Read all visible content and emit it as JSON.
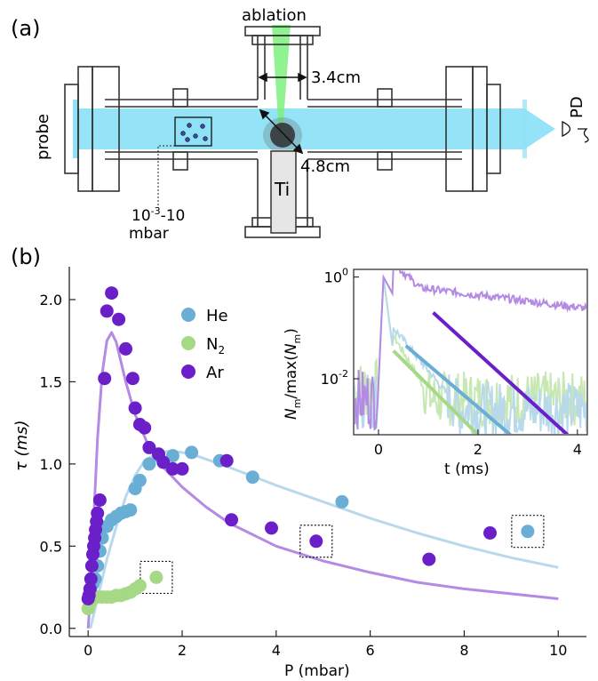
{
  "panel_a": {
    "label": "(a)",
    "ablation_label": "ablation",
    "dim_top": "3.4cm",
    "dim_bottom": "4.8cm",
    "target_label": "Ti",
    "probe_label": "probe",
    "detector_label": "PD",
    "pressure_label_1": "10",
    "pressure_label_exp": "-3",
    "pressure_label_2": "-10",
    "pressure_label_3": "mbar",
    "colors": {
      "beam": "#8fe1f5",
      "ablation": "#7cf07c",
      "chamber": "#333333",
      "target_fill": "#e8e8e8"
    }
  },
  "panel_b": {
    "label": "(b)",
    "colors": {
      "He": "#6aaed6",
      "N2": "#a6d985",
      "Ar": "#6a1fc9",
      "He_fit": "#b8d9ec",
      "N2_fit": "#c7e8b3",
      "Ar_fit": "#b48be3"
    }
  },
  "chart_data": [
    {
      "type": "scatter",
      "xlabel": "P (mbar)",
      "ylabel": "τ (ms)",
      "xlim": [
        -0.4,
        10.6
      ],
      "ylim": [
        -0.05,
        2.2
      ],
      "xticks": [
        "0",
        "2",
        "4",
        "6",
        "8",
        "10"
      ],
      "yticks": [
        "0.0",
        "0.5",
        "1.0",
        "1.5",
        "2.0"
      ],
      "legend": [
        "He",
        "N2",
        "Ar"
      ],
      "legend_display": {
        "He": "He",
        "N2_main": "N",
        "N2_sub": "2",
        "Ar": "Ar"
      },
      "legend_position": "upper-center",
      "series": [
        {
          "name": "He",
          "points": [
            [
              0.05,
              0.23
            ],
            [
              0.1,
              0.27
            ],
            [
              0.15,
              0.3
            ],
            [
              0.2,
              0.38
            ],
            [
              0.25,
              0.47
            ],
            [
              0.3,
              0.55
            ],
            [
              0.4,
              0.62
            ],
            [
              0.5,
              0.66
            ],
            [
              0.6,
              0.68
            ],
            [
              0.7,
              0.7
            ],
            [
              0.8,
              0.71
            ],
            [
              0.9,
              0.72
            ],
            [
              1.0,
              0.85
            ],
            [
              1.1,
              0.9
            ],
            [
              1.3,
              1.0
            ],
            [
              1.5,
              1.05
            ],
            [
              1.8,
              1.05
            ],
            [
              2.2,
              1.07
            ],
            [
              2.8,
              1.02
            ],
            [
              3.5,
              0.92
            ],
            [
              5.4,
              0.77
            ],
            [
              9.35,
              0.59
            ]
          ],
          "fit": [
            [
              0.05,
              0.0
            ],
            [
              0.2,
              0.18
            ],
            [
              0.4,
              0.42
            ],
            [
              0.6,
              0.62
            ],
            [
              0.8,
              0.8
            ],
            [
              1.0,
              0.93
            ],
            [
              1.2,
              1.02
            ],
            [
              1.5,
              1.07
            ],
            [
              1.8,
              1.08
            ],
            [
              2.2,
              1.06
            ],
            [
              3.0,
              0.98
            ],
            [
              4.0,
              0.87
            ],
            [
              5.0,
              0.77
            ],
            [
              6.0,
              0.67
            ],
            [
              7.0,
              0.58
            ],
            [
              8.0,
              0.5
            ],
            [
              9.0,
              0.43
            ],
            [
              10.0,
              0.37
            ]
          ]
        },
        {
          "name": "N2",
          "points": [
            [
              0.0,
              0.12
            ],
            [
              0.05,
              0.16
            ],
            [
              0.1,
              0.18
            ],
            [
              0.2,
              0.19
            ],
            [
              0.3,
              0.19
            ],
            [
              0.4,
              0.19
            ],
            [
              0.5,
              0.19
            ],
            [
              0.6,
              0.2
            ],
            [
              0.7,
              0.2
            ],
            [
              0.8,
              0.21
            ],
            [
              0.9,
              0.22
            ],
            [
              1.0,
              0.24
            ],
            [
              1.1,
              0.26
            ],
            [
              1.45,
              0.31
            ]
          ],
          "fit": [
            [
              0.0,
              0.1
            ],
            [
              0.1,
              0.18
            ],
            [
              0.3,
              0.2
            ],
            [
              0.6,
              0.2
            ],
            [
              1.0,
              0.24
            ],
            [
              1.2,
              0.27
            ]
          ]
        },
        {
          "name": "Ar",
          "points": [
            [
              0.0,
              0.18
            ],
            [
              0.02,
              0.2
            ],
            [
              0.04,
              0.24
            ],
            [
              0.06,
              0.3
            ],
            [
              0.08,
              0.38
            ],
            [
              0.1,
              0.45
            ],
            [
              0.12,
              0.5
            ],
            [
              0.14,
              0.55
            ],
            [
              0.16,
              0.6
            ],
            [
              0.18,
              0.65
            ],
            [
              0.2,
              0.7
            ],
            [
              0.25,
              0.78
            ],
            [
              0.35,
              1.52
            ],
            [
              0.4,
              1.93
            ],
            [
              0.5,
              2.04
            ],
            [
              0.65,
              1.88
            ],
            [
              0.8,
              1.7
            ],
            [
              0.95,
              1.52
            ],
            [
              1.0,
              1.34
            ],
            [
              1.1,
              1.24
            ],
            [
              1.2,
              1.22
            ],
            [
              1.3,
              1.1
            ],
            [
              1.5,
              1.06
            ],
            [
              1.6,
              1.01
            ],
            [
              1.8,
              0.97
            ],
            [
              2.0,
              0.97
            ],
            [
              2.95,
              1.02
            ],
            [
              3.05,
              0.66
            ],
            [
              3.9,
              0.61
            ],
            [
              4.85,
              0.53
            ],
            [
              7.25,
              0.42
            ],
            [
              8.55,
              0.58
            ]
          ],
          "fit": [
            [
              0.0,
              0.0
            ],
            [
              0.05,
              0.2
            ],
            [
              0.1,
              0.55
            ],
            [
              0.2,
              1.15
            ],
            [
              0.3,
              1.55
            ],
            [
              0.4,
              1.75
            ],
            [
              0.5,
              1.8
            ],
            [
              0.6,
              1.74
            ],
            [
              0.8,
              1.5
            ],
            [
              1.0,
              1.3
            ],
            [
              1.3,
              1.1
            ],
            [
              1.6,
              0.98
            ],
            [
              2.0,
              0.86
            ],
            [
              2.5,
              0.74
            ],
            [
              3.0,
              0.64
            ],
            [
              4.0,
              0.5
            ],
            [
              5.0,
              0.41
            ],
            [
              6.0,
              0.34
            ],
            [
              7.0,
              0.28
            ],
            [
              8.0,
              0.24
            ],
            [
              9.0,
              0.21
            ],
            [
              10.0,
              0.18
            ]
          ]
        }
      ],
      "annotations": [
        {
          "type": "dotted-box",
          "x": 1.45,
          "y": 0.31
        },
        {
          "type": "dotted-box",
          "x": 4.85,
          "y": 0.53
        },
        {
          "type": "dotted-box",
          "x": 9.35,
          "y": 0.59
        }
      ]
    },
    {
      "type": "line",
      "xlabel": "t (ms)",
      "ylabel": "Nm/max(Nm)",
      "ylabel_parts": [
        "N",
        "m",
        "/max(",
        "N",
        "m",
        ")"
      ],
      "xlim": [
        -0.5,
        4.2
      ],
      "ylim_log10": [
        -3.1,
        0.15
      ],
      "yscale": "log",
      "xticks": [
        "0",
        "2",
        "4"
      ],
      "yticks": [
        {
          "base": "10",
          "exp": "0"
        },
        {
          "base": "10",
          "exp": "-2"
        }
      ],
      "series": [
        {
          "name": "He",
          "decay_to": [
            [
              0.55,
              -1.35
            ],
            [
              2.65,
              -3.1
            ]
          ]
        },
        {
          "name": "N2",
          "decay_to": [
            [
              0.3,
              -1.45
            ],
            [
              2.0,
              -3.1
            ]
          ]
        },
        {
          "name": "Ar",
          "decay_to": [
            [
              1.1,
              -0.7
            ],
            [
              3.8,
              -3.1
            ]
          ]
        }
      ]
    }
  ]
}
